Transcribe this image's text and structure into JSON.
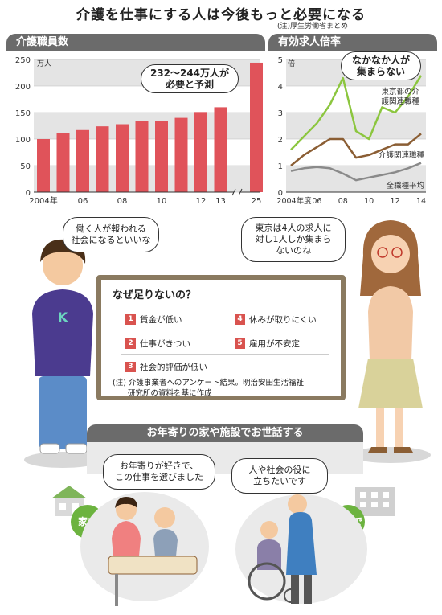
{
  "title": "介護を仕事にする人は今後もっと必要になる",
  "source_note": "(注)厚生労働省まとめ",
  "chart_data": [
    {
      "type": "bar",
      "title": "介護職員数",
      "ylabel": "万人",
      "ylim": [
        0,
        250
      ],
      "yticks": [
        "0",
        "50",
        "100",
        "150",
        "200",
        "250"
      ],
      "categories": [
        "2004",
        "2005",
        "2006",
        "2007",
        "2008",
        "2009",
        "2010",
        "2011",
        "2012",
        "2013",
        "2025"
      ],
      "xtick_labels": [
        "2004年",
        "",
        "06",
        "",
        "08",
        "",
        "10",
        "",
        "12",
        "13",
        "25"
      ],
      "values": [
        100,
        112,
        117,
        124,
        128,
        134,
        134,
        140,
        151,
        160,
        244
      ],
      "annotation": "232～244万人が\n必要と予測"
    },
    {
      "type": "line",
      "title": "有効求人倍率",
      "ylabel": "倍",
      "ylim": [
        0,
        5
      ],
      "yticks": [
        "0",
        "1",
        "2",
        "3",
        "4",
        "5"
      ],
      "x": [
        2004,
        2005,
        2006,
        2007,
        2008,
        2009,
        2010,
        2011,
        2012,
        2013,
        2014
      ],
      "xtick_labels": [
        "2004年度",
        "06",
        "08",
        "10",
        "12",
        "14"
      ],
      "series": [
        {
          "name": "東京都の介護関連職種",
          "values": [
            1.6,
            2.1,
            2.6,
            3.3,
            4.3,
            2.3,
            2.0,
            3.2,
            3.0,
            3.6,
            4.4
          ]
        },
        {
          "name": "介護関連職種",
          "values": [
            1.0,
            1.4,
            1.7,
            2.0,
            2.0,
            1.3,
            1.4,
            1.6,
            1.8,
            1.8,
            2.2
          ]
        },
        {
          "name": "全職種平均",
          "values": [
            0.8,
            0.9,
            0.95,
            0.9,
            0.7,
            0.45,
            0.55,
            0.65,
            0.75,
            0.9,
            1.1
          ]
        }
      ],
      "annotation": "なかなか人が\n集まらない"
    }
  ],
  "colors": {
    "bar": "#e0535a",
    "tokyo_line": "#8cc63f",
    "care_line": "#8b5e34",
    "all_line": "#8a8a8a",
    "band": "#e4e4e4"
  },
  "speech": {
    "man": "働く人が報われる\n社会になるといいな",
    "woman": "東京は4人の求人に\n対し1人しか集まら\nないのね",
    "care_left": "お年寄りが好きで、\nこの仕事を選びました",
    "care_right": "人や社会の役に\n立ちたいです"
  },
  "reasons": {
    "title": "なぜ足りないの？",
    "items": [
      {
        "num": "1",
        "text": "賃金が低い"
      },
      {
        "num": "2",
        "text": "仕事がきつい"
      },
      {
        "num": "3",
        "text": "社会的評価が低い"
      },
      {
        "num": "4",
        "text": "休みが取りにくい"
      },
      {
        "num": "5",
        "text": "雇用が不安定"
      }
    ],
    "note": "(注) 介護事業者へのアンケート結果。明治安田生活福祉\n　　研究所の資料を基に作成"
  },
  "care_section": {
    "title": "お年寄りの家や施設でお世話する",
    "home_label": "家で",
    "facility_label": "施設で"
  },
  "shirt_letter": "K"
}
